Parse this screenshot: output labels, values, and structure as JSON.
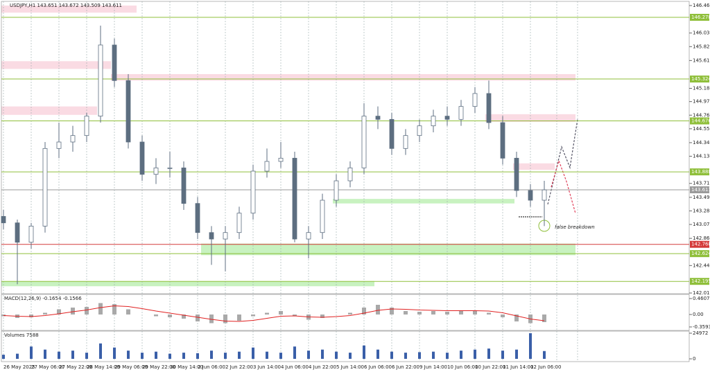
{
  "chart_data": {
    "type": "candlestick",
    "title": "USDJPY,H1 143.651 143.672 143.509 143.611",
    "categories": [
      "26 May 2025",
      null,
      "27 May 06:00",
      null,
      "27 May 22:00",
      null,
      "28 May 14:00",
      null,
      "29 May 06:00",
      null,
      "29 May 22:00",
      null,
      "30 May 14:00",
      null,
      "2 Jun 06:00",
      null,
      "2 Jun 22:00",
      null,
      "3 Jun 14:00",
      null,
      "4 Jun 06:00",
      null,
      "4 Jun 22:00",
      null,
      "5 Jun 14:00",
      null,
      "6 Jun 06:00",
      null,
      "6 Jun 22:00",
      null,
      "9 Jun 14:00",
      null,
      "10 Jun 06:00",
      null,
      "10 Jun 22:00",
      null,
      "11 Jun 14:00",
      null,
      "12 Jun 06:00",
      null
    ],
    "open": [
      143.2,
      143.1,
      142.8,
      143.05,
      144.25,
      144.35,
      144.45,
      144.75,
      145.85,
      145.3,
      144.35,
      143.85,
      143.95,
      143.95,
      143.4,
      142.95,
      142.85,
      142.95,
      143.25,
      143.9,
      144.05,
      144.1,
      142.85,
      142.95,
      143.45,
      143.75,
      143.95,
      144.75,
      144.7,
      144.25,
      144.45,
      144.6,
      144.75,
      144.7,
      144.9,
      145.1,
      144.65,
      144.1,
      143.6,
      143.45
    ],
    "high": [
      143.3,
      143.15,
      143.1,
      144.35,
      144.65,
      144.6,
      144.8,
      146.15,
      145.95,
      145.4,
      144.45,
      144.1,
      144.2,
      144.05,
      143.5,
      143.05,
      143.05,
      143.35,
      144.0,
      144.25,
      144.35,
      144.2,
      143.05,
      143.55,
      143.85,
      144.05,
      144.95,
      144.9,
      144.8,
      144.55,
      144.7,
      144.85,
      144.9,
      145.0,
      145.2,
      145.3,
      144.75,
      144.2,
      143.7,
      143.75
    ],
    "low": [
      143.0,
      142.15,
      142.7,
      142.95,
      144.1,
      144.2,
      144.35,
      144.65,
      145.2,
      144.25,
      143.75,
      143.7,
      143.8,
      143.3,
      142.85,
      142.45,
      142.35,
      142.85,
      143.15,
      143.8,
      143.95,
      142.8,
      142.55,
      142.85,
      143.35,
      143.65,
      143.85,
      144.55,
      144.15,
      144.15,
      144.35,
      144.5,
      144.6,
      144.6,
      144.8,
      144.55,
      144.0,
      143.5,
      143.35,
      143.05
    ],
    "close": [
      143.1,
      142.8,
      143.05,
      144.25,
      144.35,
      144.45,
      144.75,
      145.85,
      145.3,
      144.35,
      143.85,
      143.95,
      143.95,
      143.4,
      142.95,
      142.85,
      142.95,
      143.25,
      143.9,
      144.05,
      144.1,
      142.85,
      142.95,
      143.45,
      143.75,
      143.95,
      144.75,
      144.7,
      144.25,
      144.45,
      144.6,
      144.75,
      144.7,
      144.9,
      145.1,
      144.65,
      144.1,
      143.6,
      143.45,
      143.61
    ],
    "ylim": [
      142.015,
      146.46
    ],
    "yticks": [
      {
        "value": 146.46,
        "label": "146.460"
      },
      146.035,
      145.825,
      {
        "value": 145.61,
        "label": "145.610"
      },
      {
        "value": 145.18,
        "label": "145.180"
      },
      144.975,
      144.765,
      144.555,
      {
        "value": 144.34,
        "label": "144.340"
      },
      {
        "value": 144.13,
        "label": "144.130"
      },
      {
        "value": 143.71,
        "label": "143.710"
      },
      143.495,
      143.285,
      143.075,
      {
        "value": 142.86,
        "label": "142.860"
      },
      {
        "value": 142.44,
        "label": "142.440"
      },
      142.015
    ],
    "levels": [
      {
        "value": 146.278,
        "color": "#8fbf3a"
      },
      {
        "value": 145.324,
        "color": "#8fbf3a"
      },
      {
        "value": 144.676,
        "color": "#8fbf3a"
      },
      {
        "value": 143.888,
        "color": "#8fbf3a"
      },
      {
        "value": 143.611,
        "color": "#9a9a9a"
      },
      {
        "value": 142.768,
        "color": "#d43a3a"
      },
      {
        "value": 142.624,
        "color": "#8fbf3a"
      },
      {
        "value": 142.195,
        "color": "#8fbf3a"
      }
    ],
    "annotation": "false breakdown",
    "macd": {
      "title": "MACD(12,26,9) -0.1654 -0.1566",
      "histogram": [
        -0.05,
        -0.1,
        -0.08,
        0.05,
        0.15,
        0.2,
        0.22,
        0.33,
        0.3,
        0.15,
        0.0,
        -0.05,
        -0.08,
        -0.12,
        -0.2,
        -0.25,
        -0.25,
        -0.18,
        -0.05,
        0.05,
        0.1,
        -0.05,
        -0.15,
        -0.1,
        0.0,
        0.05,
        0.2,
        0.28,
        0.2,
        0.1,
        0.08,
        0.1,
        0.08,
        0.1,
        0.12,
        0.05,
        -0.08,
        -0.2,
        -0.25,
        -0.22
      ],
      "signal": [
        -0.03,
        -0.05,
        -0.06,
        -0.03,
        0.02,
        0.08,
        0.13,
        0.2,
        0.25,
        0.23,
        0.17,
        0.1,
        0.04,
        -0.02,
        -0.08,
        -0.14,
        -0.19,
        -0.2,
        -0.17,
        -0.11,
        -0.05,
        -0.04,
        -0.07,
        -0.08,
        -0.06,
        -0.03,
        0.04,
        0.12,
        0.16,
        0.15,
        0.13,
        0.12,
        0.11,
        0.11,
        0.11,
        0.1,
        0.05,
        -0.04,
        -0.13,
        -0.18
      ],
      "ylim": [
        -0.46,
        0.58
      ],
      "yticks": [
        0.4607,
        {
          "value": 0,
          "label": "0.00"
        },
        -0.3593
      ]
    },
    "volume": {
      "title": "Volumes 7588",
      "values": [
        4000,
        5000,
        12000,
        9000,
        7000,
        8000,
        6000,
        15000,
        11000,
        8000,
        6000,
        7000,
        5000,
        6000,
        5500,
        8000,
        6000,
        7000,
        11000,
        7000,
        6000,
        12000,
        8000,
        9000,
        7000,
        6000,
        13000,
        9000,
        7000,
        6000,
        6500,
        7000,
        6000,
        8000,
        9000,
        10000,
        8000,
        9000,
        24972,
        7588
      ],
      "ylim": [
        0,
        24972
      ],
      "yticks": [
        24972,
        0
      ]
    }
  }
}
